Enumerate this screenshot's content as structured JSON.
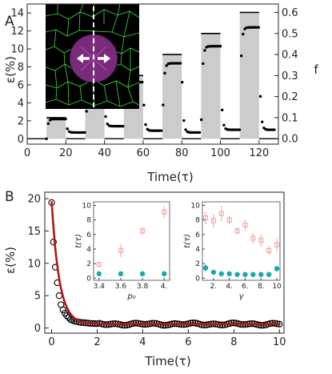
{
  "chart_data": [
    {
      "panel_label": "A",
      "type": "scatter",
      "xlabel": "Time(τ)",
      "ylabel_left": "ε(%)",
      "ylabel_right": "f",
      "xlim": [
        0,
        130
      ],
      "ylim_left": [
        -0.6,
        15
      ],
      "ylim_right": [
        -0.026,
        0.64
      ],
      "xticks": [
        0,
        20,
        40,
        60,
        80,
        100,
        120
      ],
      "yticks_left": [
        0,
        2,
        4,
        6,
        8,
        10,
        12,
        14
      ],
      "yticks_right": [
        "0.0",
        "0.1",
        "0.2",
        "0.3",
        "0.4",
        "0.5",
        "0.6"
      ],
      "force_pulses": [
        {
          "start": 10,
          "end": 20,
          "f": 0.1
        },
        {
          "start": 30,
          "end": 40,
          "f": 0.2
        },
        {
          "start": 50,
          "end": 60,
          "f": 0.3
        },
        {
          "start": 70,
          "end": 80,
          "f": 0.4
        },
        {
          "start": 90,
          "end": 100,
          "f": 0.5
        },
        {
          "start": 110,
          "end": 120,
          "f": 0.6
        }
      ],
      "strain_response": [
        {
          "start": 10,
          "end": 20,
          "plateau": 2.2,
          "residual": 0.7
        },
        {
          "start": 30,
          "end": 40,
          "plateau": 4.2,
          "residual": 1.4
        },
        {
          "start": 50,
          "end": 60,
          "plateau": 6.3,
          "residual": 0.9
        },
        {
          "start": 70,
          "end": 80,
          "plateau": 8.4,
          "residual": 0.7
        },
        {
          "start": 90,
          "end": 100,
          "plateau": 10.3,
          "residual": 1.0
        },
        {
          "start": 110,
          "end": 120,
          "plateau": 12.4,
          "residual": 1.0
        }
      ],
      "inset": "cell tissue illustration with central disk and outward arrows"
    },
    {
      "panel_label": "B",
      "type": "scatter",
      "xlabel": "Time(τ)",
      "ylabel": "ε(%)",
      "xlim": [
        -0.3,
        10.2
      ],
      "ylim": [
        -0.8,
        21
      ],
      "xticks": [
        0,
        2,
        4,
        6,
        8,
        10
      ],
      "yticks": [
        0,
        5,
        10,
        15,
        20
      ],
      "fit": {
        "type": "exponential decay",
        "amplitude": 19.0,
        "rate": 3.0,
        "offset": 0.6,
        "color": "#b01818"
      },
      "points_x": [
        0.0,
        0.08,
        0.16,
        0.25,
        0.33,
        0.41,
        0.5,
        0.58,
        0.66,
        0.75,
        0.83,
        0.91,
        1.0,
        1.1,
        1.2,
        1.3,
        1.4,
        1.5,
        1.6,
        1.7,
        1.8,
        1.9,
        2.0
      ],
      "points_y": [
        19.4,
        13.3,
        9.4,
        7.0,
        5.0,
        3.6,
        2.8,
        2.3,
        1.9,
        1.6,
        1.3,
        1.2,
        1.05,
        1.0,
        0.9,
        0.85,
        0.82,
        0.8,
        0.75,
        0.7,
        0.7,
        0.68,
        0.66
      ],
      "tail": {
        "from": 2.0,
        "to": 10.0,
        "step": 0.1,
        "level": 0.6
      },
      "insets": [
        {
          "xlabel": "p₀",
          "ylabel": "t(τ)",
          "xlim": [
            3.35,
            4.05
          ],
          "ylim": [
            -0.3,
            10.5
          ],
          "xticks": [
            3.4,
            3.6,
            3.8,
            4.0
          ],
          "xtick_labels": [
            "3.4",
            "3.6",
            "3.8",
            "4."
          ],
          "yticks": [
            0,
            2,
            4,
            6,
            8,
            10
          ],
          "series": [
            {
              "name": "",
              "marker": "open-square",
              "color": "#f0a0a0",
              "x": [
                3.4,
                3.6,
                3.8,
                4.0
              ],
              "y": [
                1.9,
                3.8,
                6.5,
                9.1
              ],
              "err": [
                0.25,
                0.9,
                0.6,
                0.8
              ]
            },
            {
              "name": "",
              "marker": "filled-circle",
              "color": "#1aa8a8",
              "x": [
                3.4,
                3.6,
                3.8,
                4.0
              ],
              "y": [
                0.6,
                0.6,
                0.6,
                0.6
              ]
            }
          ]
        },
        {
          "xlabel": "γ",
          "ylabel": "t(τ)",
          "xlim": [
            0.6,
            10.4
          ],
          "ylim": [
            -0.3,
            10.5
          ],
          "xticks": [
            2,
            4,
            6,
            8,
            10
          ],
          "xtick_labels": [
            "2.",
            "4.",
            "6.",
            "8.",
            "10"
          ],
          "yticks": [
            0,
            2,
            4,
            6,
            8,
            10
          ],
          "series": [
            {
              "name": "",
              "marker": "open-square",
              "color": "#f0a0a0",
              "x": [
                1,
                2,
                3,
                4,
                5,
                6,
                7,
                8,
                9,
                10
              ],
              "y": [
                8.3,
                7.9,
                8.9,
                8.0,
                6.5,
                7.3,
                5.5,
                5.2,
                3.8,
                4.6
              ],
              "err": [
                0.9,
                1.0,
                1.1,
                0.6,
                0.5,
                0.8,
                0.7,
                0.9,
                0.6,
                0.9
              ]
            },
            {
              "name": "",
              "marker": "filled-circle",
              "color": "#1aa8a8",
              "x": [
                1,
                2,
                3,
                4,
                5,
                6,
                7,
                8,
                9,
                10
              ],
              "y": [
                1.4,
                0.8,
                0.6,
                0.6,
                0.5,
                0.5,
                0.5,
                0.5,
                0.5,
                1.3
              ],
              "err": [
                0.5,
                0.15,
                0.1,
                0.1,
                0.1,
                0.1,
                0.1,
                0.1,
                0.1,
                0.4
              ]
            }
          ]
        }
      ]
    }
  ]
}
